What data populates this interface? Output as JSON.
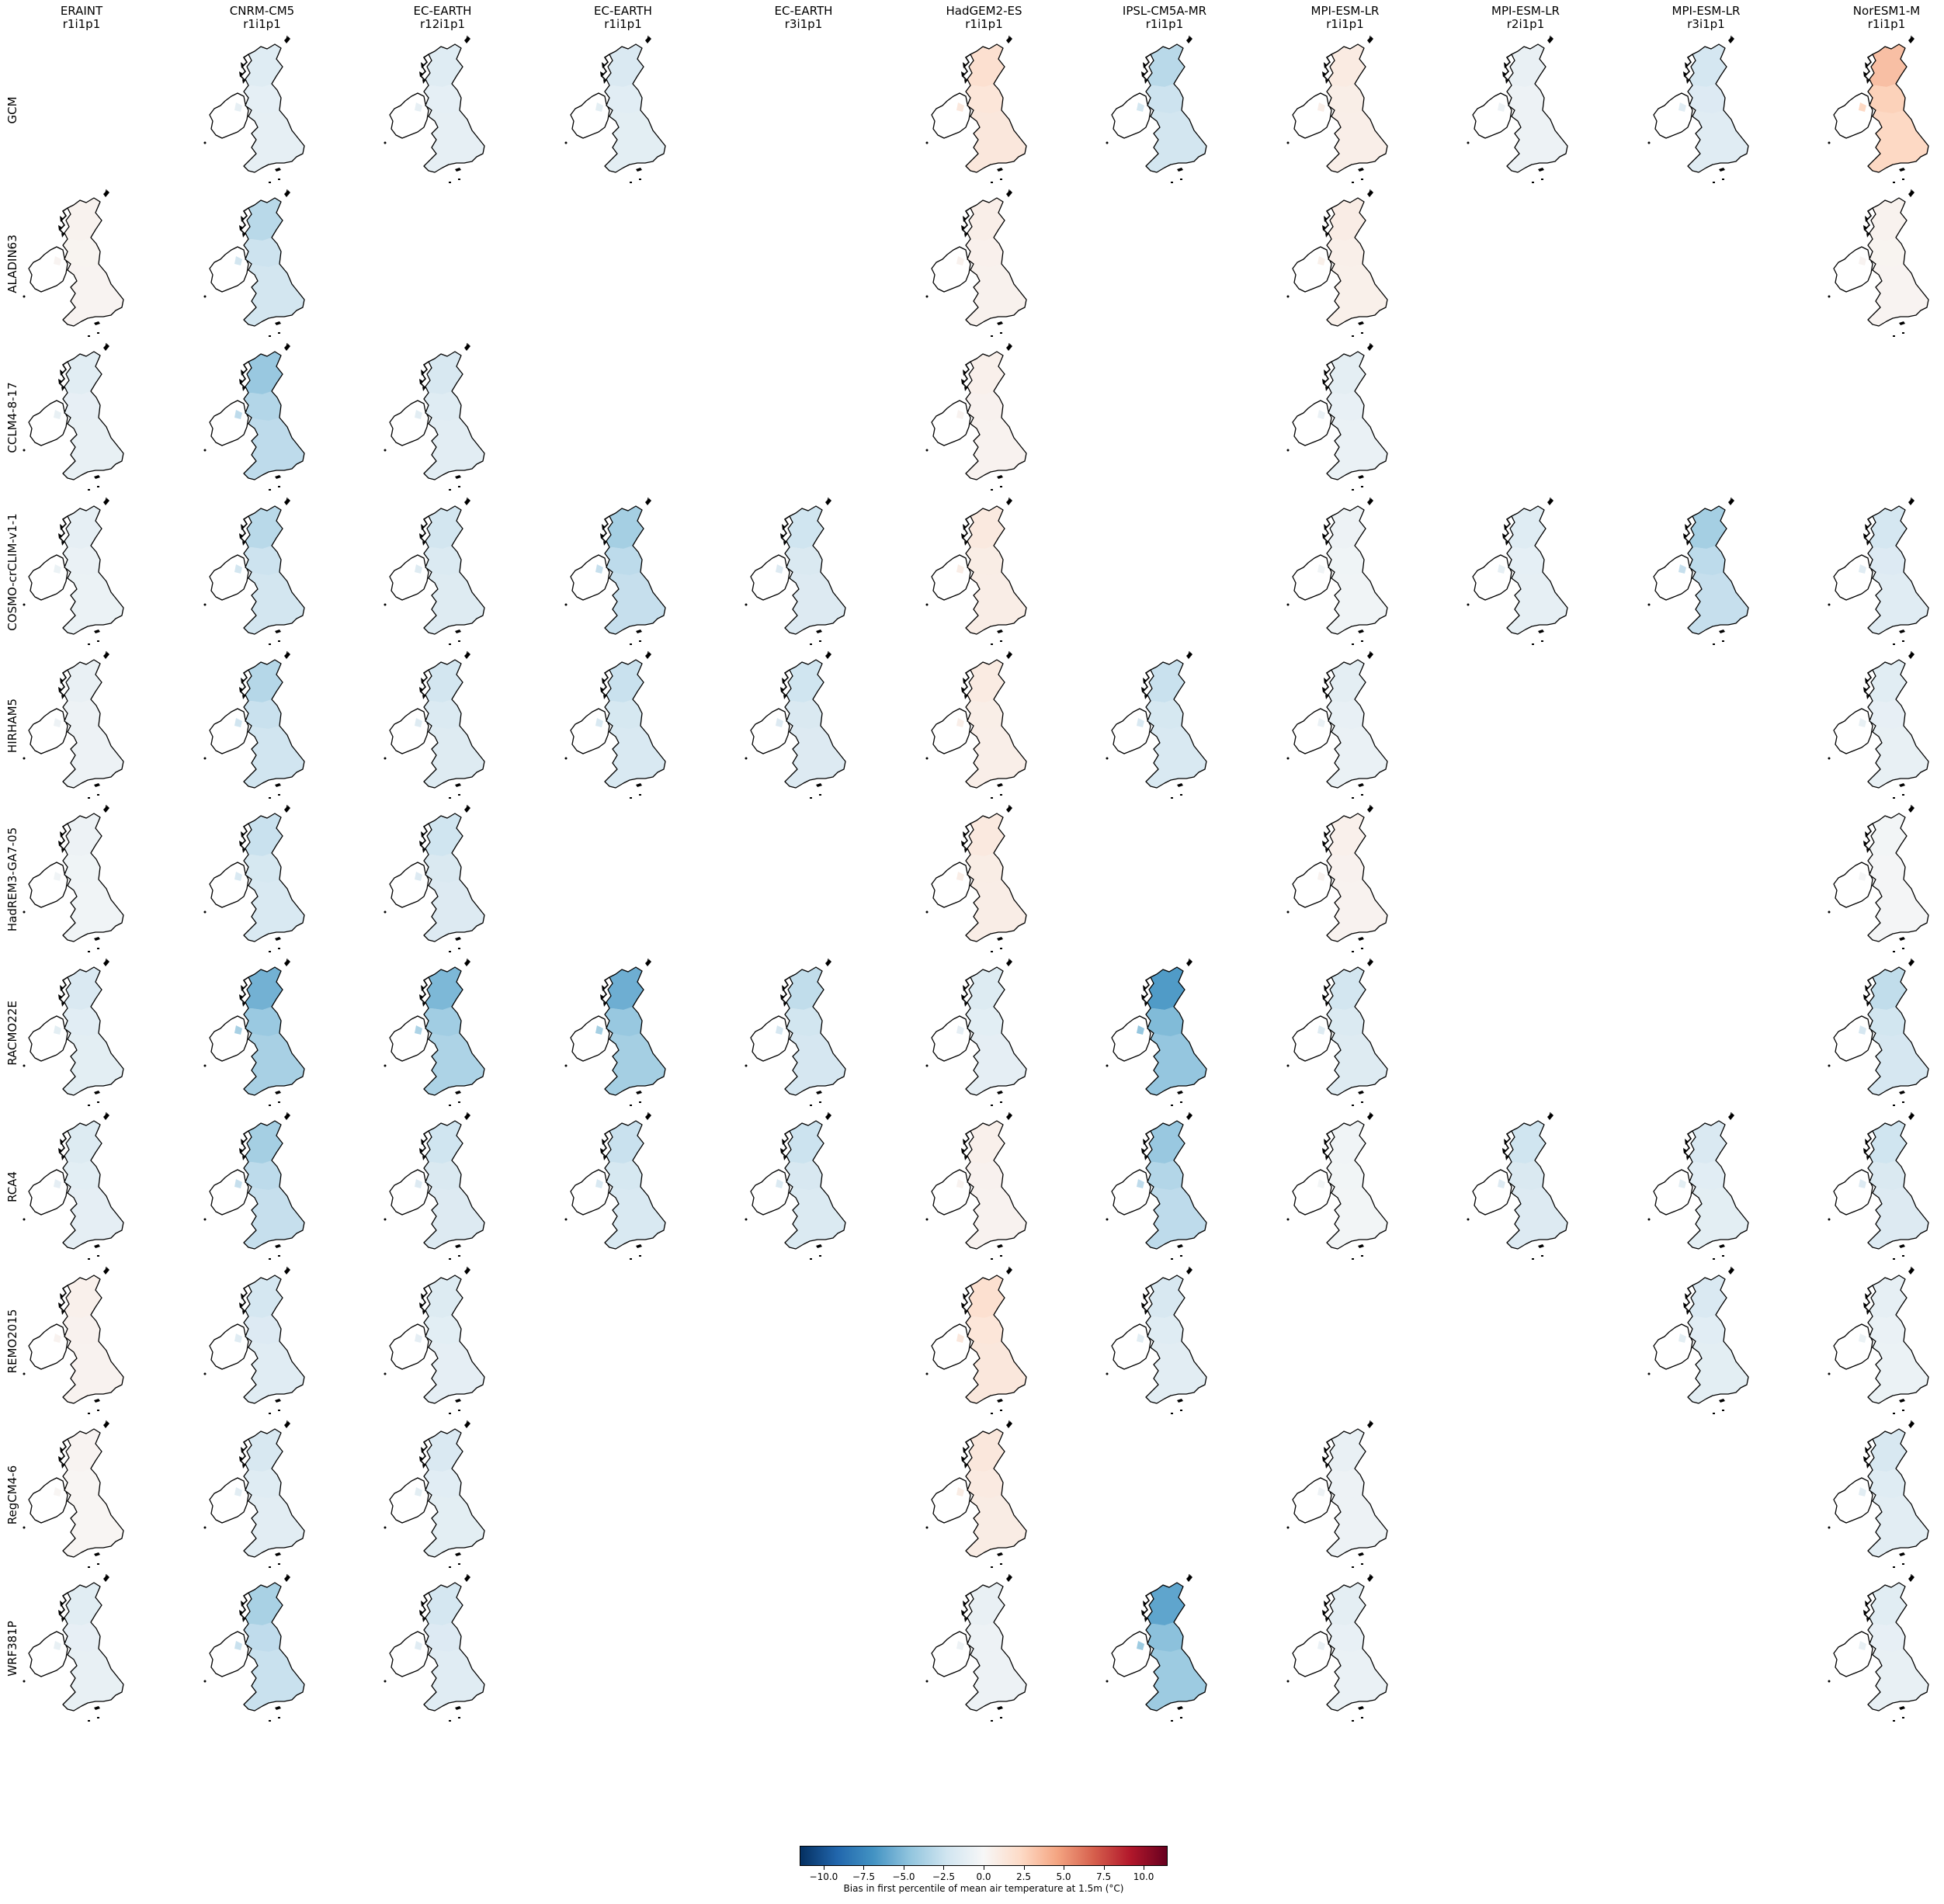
{
  "figure": {
    "colorbar_label": "Bias in first percentile of mean air temperature at 1.5m (°C)",
    "colormap": "RdBu_r",
    "colorbar_range": [
      -11.5,
      11.5
    ]
  },
  "colorbar_ticks": [
    {
      "value": -10,
      "label": "−10.0"
    },
    {
      "value": -7.5,
      "label": "−7.5"
    },
    {
      "value": -5,
      "label": "−5.0"
    },
    {
      "value": -2.5,
      "label": "−2.5"
    },
    {
      "value": 0,
      "label": "0.0"
    },
    {
      "value": 2.5,
      "label": "2.5"
    },
    {
      "value": 5,
      "label": "5.0"
    },
    {
      "value": 7.5,
      "label": "7.5"
    },
    {
      "value": 10,
      "label": "10.0"
    }
  ],
  "columns": [
    {
      "model": "ERAINT",
      "run": "r1i1p1"
    },
    {
      "model": "CNRM-CM5",
      "run": "r1i1p1"
    },
    {
      "model": "EC-EARTH",
      "run": "r12i1p1"
    },
    {
      "model": "EC-EARTH",
      "run": "r1i1p1"
    },
    {
      "model": "EC-EARTH",
      "run": "r3i1p1"
    },
    {
      "model": "HadGEM2-ES",
      "run": "r1i1p1"
    },
    {
      "model": "IPSL-CM5A-MR",
      "run": "r1i1p1"
    },
    {
      "model": "MPI-ESM-LR",
      "run": "r1i1p1"
    },
    {
      "model": "MPI-ESM-LR",
      "run": "r2i1p1"
    },
    {
      "model": "MPI-ESM-LR",
      "run": "r3i1p1"
    },
    {
      "model": "NorESM1-M",
      "run": "r1i1p1"
    }
  ],
  "rows": [
    {
      "label": "GCM",
      "bias": [
        null,
        -1.0,
        -1.0,
        -1.2,
        null,
        1.3,
        -2.2,
        0.7,
        -0.6,
        -1.4,
        2.4
      ]
    },
    {
      "label": "ALADIN63",
      "bias": [
        0.3,
        -2.2,
        null,
        null,
        null,
        0.5,
        null,
        0.6,
        null,
        null,
        0.3
      ]
    },
    {
      "label": "CCLM4-8-17",
      "bias": [
        -0.9,
        -3.0,
        -1.3,
        null,
        null,
        0.4,
        null,
        -0.8,
        null,
        null,
        null
      ]
    },
    {
      "label": "COSMO-crCLIM-v1-1",
      "bias": [
        -0.7,
        -2.2,
        -1.5,
        -2.7,
        -1.6,
        0.8,
        null,
        -0.4,
        -1.0,
        -2.7,
        -1.4
      ]
    },
    {
      "label": "HIRHAM5",
      "bias": [
        -0.6,
        -2.3,
        -1.5,
        -1.8,
        -1.6,
        0.7,
        -1.8,
        -0.8,
        null,
        null,
        -0.9
      ]
    },
    {
      "label": "HadREM3-GA7-05",
      "bias": [
        -0.4,
        -1.8,
        -1.6,
        null,
        null,
        0.8,
        null,
        0.4,
        null,
        null,
        -0.2
      ]
    },
    {
      "label": "RACMO22E",
      "bias": [
        -1.2,
        -3.8,
        -3.6,
        -3.9,
        -2.0,
        -1.1,
        -4.5,
        -1.5,
        null,
        null,
        -2.0
      ]
    },
    {
      "label": "RCA4",
      "bias": [
        -1.1,
        -2.7,
        -1.6,
        -1.8,
        -1.7,
        0.4,
        -3.0,
        -0.3,
        -1.6,
        -1.2,
        -1.6
      ]
    },
    {
      "label": "REMO2015",
      "bias": [
        0.4,
        -1.4,
        -1.1,
        null,
        null,
        1.3,
        -1.3,
        null,
        null,
        -1.2,
        -0.7
      ]
    },
    {
      "label": "RegCM4-6",
      "bias": [
        0.2,
        -1.3,
        -1.2,
        null,
        null,
        0.9,
        null,
        -0.6,
        null,
        null,
        -1.3
      ]
    },
    {
      "label": "WRF381P",
      "bias": [
        -0.9,
        -2.6,
        -1.4,
        null,
        null,
        -0.6,
        -4.2,
        -0.8,
        null,
        null,
        -0.9
      ]
    }
  ]
}
